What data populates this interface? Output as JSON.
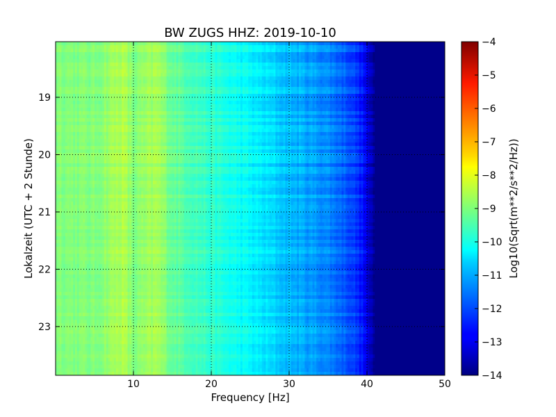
{
  "chart_data": {
    "type": "heatmap",
    "title": "BW ZUGS HHZ: 2019-10-10",
    "xlabel": "Frequency [Hz]",
    "ylabel": "Lokalzeit (UTC + 2 Stunde)",
    "xlim": [
      0,
      50
    ],
    "ylim": [
      18.03,
      23.85
    ],
    "x_ticks": [
      10,
      20,
      30,
      40,
      50
    ],
    "y_ticks": [
      19,
      20,
      21,
      22,
      23
    ],
    "y_inverted": true,
    "grid": true,
    "colormap": "jet",
    "colorbar": {
      "label": "Log10(Sqrt(m**2/s**2/Hz))",
      "range": [
        -14,
        -4
      ],
      "ticks": [
        -4,
        -5,
        -6,
        -7,
        -8,
        -9,
        -10,
        -11,
        -12,
        -13,
        -14
      ]
    },
    "profile": {
      "frequency_hz": [
        0,
        5,
        8.5,
        9,
        10,
        13,
        15,
        20,
        25,
        30,
        35,
        38,
        39.5,
        41,
        50
      ],
      "log10_psd": [
        -8.9,
        -9.0,
        -8.5,
        -8.6,
        -9.0,
        -8.6,
        -9.2,
        -9.8,
        -10.3,
        -10.9,
        -11.4,
        -12.0,
        -12.6,
        -13.9,
        -13.9
      ]
    }
  }
}
